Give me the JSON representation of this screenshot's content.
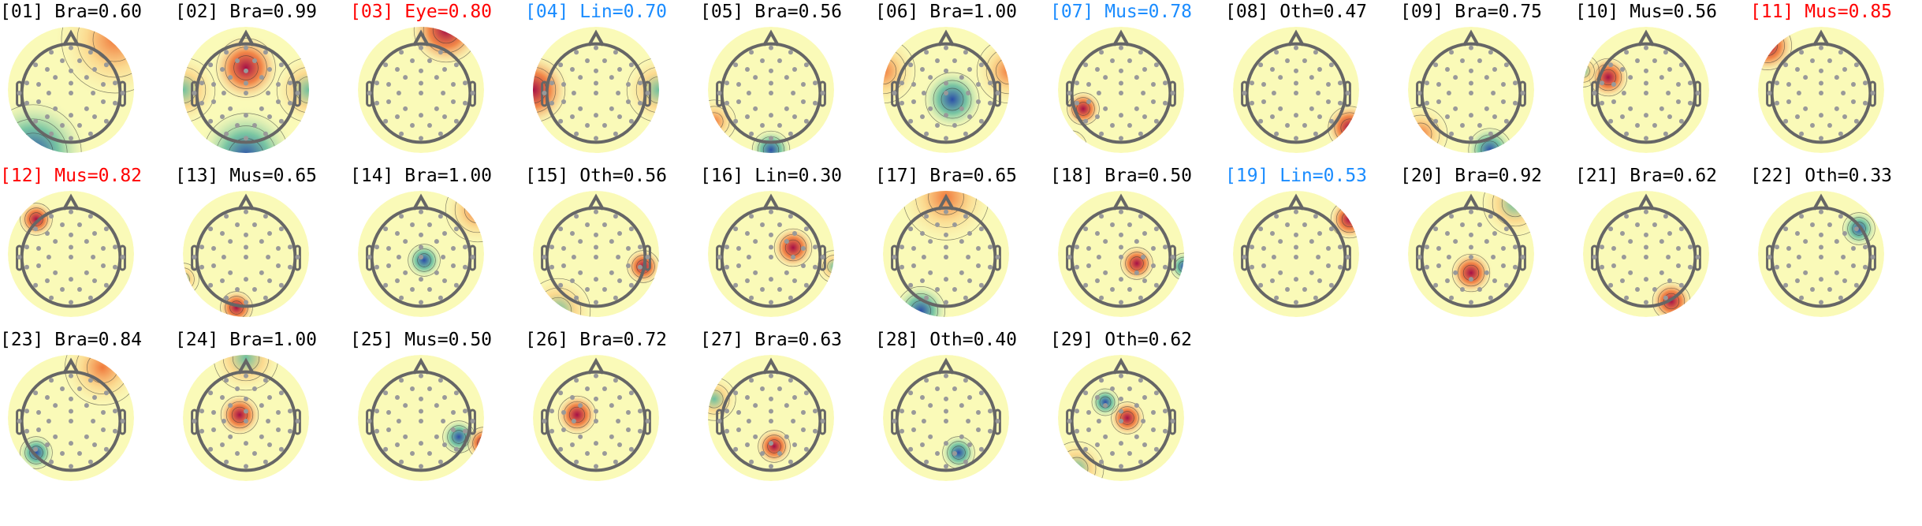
{
  "chart_data": {
    "type": "heatmap",
    "layout": {
      "columns": 11,
      "rows": 3
    },
    "colormap": [
      "#2b4fa8",
      "#4fb0a5",
      "#d6ee9b",
      "#ffffc0",
      "#fdb766",
      "#e8553a",
      "#a50f46"
    ],
    "label_colors": {
      "default": "#000000",
      "red": "#ff0000",
      "blue": "#1a8cff"
    },
    "components": [
      {
        "title": "[01] Bra=0.60",
        "index": "01",
        "label": "Bra",
        "score": 0.6,
        "color": "default"
      },
      {
        "title": "[02] Bra=0.99",
        "index": "02",
        "label": "Bra",
        "score": 0.99,
        "color": "default"
      },
      {
        "title": "[03] Eye=0.80",
        "index": "03",
        "label": "Eye",
        "score": 0.8,
        "color": "red"
      },
      {
        "title": "[04] Lin=0.70",
        "index": "04",
        "label": "Lin",
        "score": 0.7,
        "color": "blue"
      },
      {
        "title": "[05] Bra=0.56",
        "index": "05",
        "label": "Bra",
        "score": 0.56,
        "color": "default"
      },
      {
        "title": "[06] Bra=1.00",
        "index": "06",
        "label": "Bra",
        "score": 1.0,
        "color": "default"
      },
      {
        "title": "[07] Mus=0.78",
        "index": "07",
        "label": "Mus",
        "score": 0.78,
        "color": "blue"
      },
      {
        "title": "[08] Oth=0.47",
        "index": "08",
        "label": "Oth",
        "score": 0.47,
        "color": "default"
      },
      {
        "title": "[09] Bra=0.75",
        "index": "09",
        "label": "Bra",
        "score": 0.75,
        "color": "default"
      },
      {
        "title": "[10] Mus=0.56",
        "index": "10",
        "label": "Mus",
        "score": 0.56,
        "color": "default"
      },
      {
        "title": "[11] Mus=0.85",
        "index": "11",
        "label": "Mus",
        "score": 0.85,
        "color": "red"
      },
      {
        "title": "[12] Mus=0.82",
        "index": "12",
        "label": "Mus",
        "score": 0.82,
        "color": "red"
      },
      {
        "title": "[13] Mus=0.65",
        "index": "13",
        "label": "Mus",
        "score": 0.65,
        "color": "default"
      },
      {
        "title": "[14] Bra=1.00",
        "index": "14",
        "label": "Bra",
        "score": 1.0,
        "color": "default"
      },
      {
        "title": "[15] Oth=0.56",
        "index": "15",
        "label": "Oth",
        "score": 0.56,
        "color": "default"
      },
      {
        "title": "[16] Lin=0.30",
        "index": "16",
        "label": "Lin",
        "score": 0.3,
        "color": "default"
      },
      {
        "title": "[17] Bra=0.65",
        "index": "17",
        "label": "Bra",
        "score": 0.65,
        "color": "default"
      },
      {
        "title": "[18] Bra=0.50",
        "index": "18",
        "label": "Bra",
        "score": 0.5,
        "color": "default"
      },
      {
        "title": "[19] Lin=0.53",
        "index": "19",
        "label": "Lin",
        "score": 0.53,
        "color": "blue"
      },
      {
        "title": "[20] Bra=0.92",
        "index": "20",
        "label": "Bra",
        "score": 0.92,
        "color": "default"
      },
      {
        "title": "[21] Bra=0.62",
        "index": "21",
        "label": "Bra",
        "score": 0.62,
        "color": "default"
      },
      {
        "title": "[22] Oth=0.33",
        "index": "22",
        "label": "Oth",
        "score": 0.33,
        "color": "default"
      },
      {
        "title": "[23] Bra=0.84",
        "index": "23",
        "label": "Bra",
        "score": 0.84,
        "color": "default"
      },
      {
        "title": "[24] Bra=1.00",
        "index": "24",
        "label": "Bra",
        "score": 1.0,
        "color": "default"
      },
      {
        "title": "[25] Mus=0.50",
        "index": "25",
        "label": "Mus",
        "score": 0.5,
        "color": "default"
      },
      {
        "title": "[26] Bra=0.72",
        "index": "26",
        "label": "Bra",
        "score": 0.72,
        "color": "default"
      },
      {
        "title": "[27] Bra=0.63",
        "index": "27",
        "label": "Bra",
        "score": 0.63,
        "color": "default"
      },
      {
        "title": "[28] Oth=0.40",
        "index": "28",
        "label": "Oth",
        "score": 0.4,
        "color": "default"
      },
      {
        "title": "[29] Oth=0.62",
        "index": "29",
        "label": "Oth",
        "score": 0.62,
        "color": "default"
      }
    ]
  }
}
